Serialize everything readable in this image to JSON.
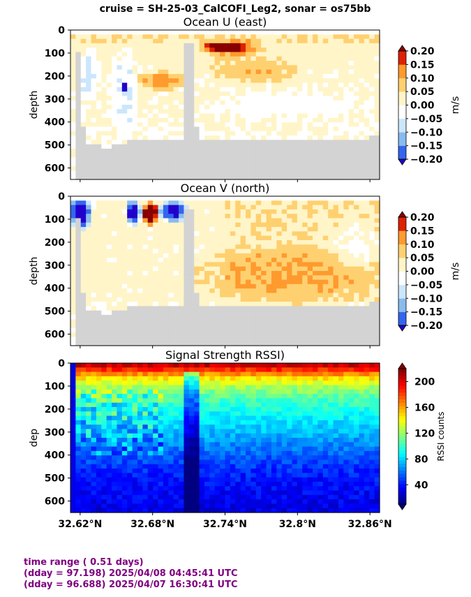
{
  "suptitle": "cruise = SH-25-03_CalCOFI_Leg2,  sonar = os75bb",
  "x_ticks": [
    "32.62°N",
    "32.68°N",
    "32.74°N",
    "32.8°N",
    "32.86°N"
  ],
  "footer": {
    "line1": "time range ( 0.51 days)",
    "line2": "(dday = 97.198) 2025/04/08 04:45:41 UTC",
    "line3": "(dday = 96.688) 2025/04/07 16:30:41 UTC"
  },
  "colors": {
    "footer_text": "#800080",
    "nodata_gray": "#d3d3d3",
    "velocity_scale": [
      "#2200cc",
      "#3366ee",
      "#88bbee",
      "#cce6fb",
      "#ffffff",
      "#fff5c8",
      "#ffd070",
      "#ff9a2e",
      "#dd2200",
      "#880000"
    ]
  },
  "chart_data": [
    {
      "type": "heatmap",
      "title": "Ocean U (east)",
      "ylabel": "depth",
      "x_range": [
        32.612,
        32.868
      ],
      "ylim": [
        650,
        0
      ],
      "y_ticks": [
        "0",
        "100",
        "200",
        "300",
        "400",
        "500",
        "600"
      ],
      "colorbar": {
        "label": "m/s",
        "levels": [
          -0.2,
          -0.15,
          -0.1,
          -0.05,
          0.0,
          0.05,
          0.1,
          0.15,
          0.2
        ],
        "tick_labels": [
          "−0.20",
          "−0.15",
          "−0.10",
          "−0.05",
          "0.00",
          "0.05",
          "0.10",
          "0.15",
          "0.20"
        ]
      },
      "features": [
        {
          "lat": [
            32.618,
            32.636
          ],
          "depth": [
            90,
            300
          ],
          "value": -0.07
        },
        {
          "lat": [
            32.645,
            32.667
          ],
          "depth": [
            100,
            450
          ],
          "value": -0.06
        },
        {
          "lat": [
            32.653,
            32.659
          ],
          "depth": [
            230,
            270
          ],
          "value": -0.15
        },
        {
          "lat": [
            32.669,
            32.705
          ],
          "depth": [
            180,
            260
          ],
          "value": 0.1
        },
        {
          "lat": [
            32.722,
            32.76
          ],
          "depth": [
            60,
            90
          ],
          "value": 0.15
        },
        {
          "lat": [
            32.72,
            32.77
          ],
          "depth": [
            40,
            120
          ],
          "value": 0.09
        },
        {
          "lat": [
            32.73,
            32.8
          ],
          "depth": [
            120,
            230
          ],
          "value": 0.06
        },
        {
          "lat": [
            32.73,
            32.86
          ],
          "depth": [
            280,
            380
          ],
          "value": -0.03
        }
      ]
    },
    {
      "type": "heatmap",
      "title": "Ocean V (north)",
      "ylabel": "depth",
      "x_range": [
        32.612,
        32.868
      ],
      "ylim": [
        650,
        0
      ],
      "y_ticks": [
        "0",
        "100",
        "200",
        "300",
        "400",
        "500",
        "600"
      ],
      "colorbar": {
        "label": "m/s",
        "levels": [
          -0.2,
          -0.15,
          -0.1,
          -0.05,
          0.0,
          0.05,
          0.1,
          0.15,
          0.2
        ],
        "tick_labels": [
          "−0.20",
          "−0.15",
          "−0.10",
          "−0.05",
          "0.00",
          "0.05",
          "0.10",
          "0.15",
          "0.20"
        ]
      },
      "features": [
        {
          "lat": [
            32.612,
            32.629
          ],
          "depth": [
            10,
            140
          ],
          "value": -0.25
        },
        {
          "lat": [
            32.658,
            32.67
          ],
          "depth": [
            20,
            120
          ],
          "value": -0.25
        },
        {
          "lat": [
            32.672,
            32.684
          ],
          "depth": [
            30,
            120
          ],
          "value": 0.25
        },
        {
          "lat": [
            32.686,
            32.708
          ],
          "depth": [
            20,
            110
          ],
          "value": -0.22
        },
        {
          "lat": [
            32.72,
            32.86
          ],
          "depth": [
            230,
            450
          ],
          "value": 0.06
        },
        {
          "lat": [
            32.83,
            32.868
          ],
          "depth": [
            120,
            320
          ],
          "value": -0.05
        }
      ]
    },
    {
      "type": "heatmap",
      "title": "Signal Strength RSSI)",
      "ylabel": "dep",
      "x_range": [
        32.612,
        32.868
      ],
      "ylim": [
        650,
        0
      ],
      "y_ticks": [
        "0",
        "100",
        "200",
        "300",
        "400",
        "500",
        "600"
      ],
      "colorbar": {
        "label": "RSSI counts",
        "range": [
          10,
          220
        ],
        "tick_labels": [
          "40",
          "80",
          "120",
          "160",
          "200"
        ]
      },
      "profile": {
        "depth": [
          0,
          30,
          60,
          100,
          150,
          220,
          300,
          400,
          500,
          650
        ],
        "value": [
          215,
          185,
          150,
          125,
          105,
          90,
          75,
          55,
          40,
          30
        ]
      }
    }
  ]
}
